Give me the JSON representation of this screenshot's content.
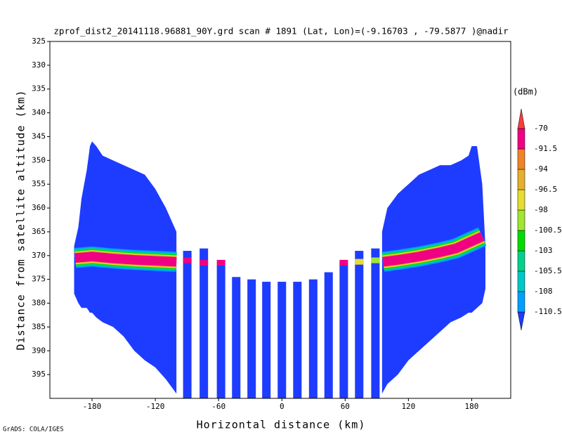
{
  "chart_data": {
    "type": "profile",
    "title": "zprof_dist2_20141118.96881_90Y.grd  scan # 1891  (Lat, Lon)=(-9.16703 , -79.5877 )@nadir",
    "x_label": "Horizontal distance (km)",
    "y_label": "Distance from satellite altitude (km)",
    "footer": "GrADS: COLA/IGES",
    "xlim": [
      -220,
      217
    ],
    "ylim": [
      325,
      400
    ],
    "y_reversed": true,
    "xticks": [
      -180,
      -120,
      -60,
      0,
      60,
      120,
      180
    ],
    "yticks": [
      325,
      330,
      335,
      340,
      345,
      350,
      355,
      360,
      365,
      370,
      375,
      380,
      385,
      390,
      395
    ],
    "colorbar_title": "(dBm)",
    "levels": [
      -110.5,
      -108,
      -105.5,
      -103,
      -100.5,
      -98,
      -96.5,
      -94,
      -91.5,
      -70
    ],
    "colors": [
      "#1e3cff",
      "#00a0ff",
      "#00c8c8",
      "#00d28c",
      "#00dc00",
      "#a0e632",
      "#e6dc32",
      "#e6af2d",
      "#f08228",
      "#f00082",
      "#fa3c3c"
    ],
    "swaths": [
      {
        "value": -112,
        "x": [
          -197,
          -193,
          -190,
          -185,
          -182,
          -180,
          -176,
          -170,
          -160,
          -150,
          -140,
          -130,
          -120,
          -110,
          -100
        ],
        "top": [
          368,
          364,
          358,
          352,
          347,
          346,
          347,
          349,
          350,
          351,
          352,
          353,
          356,
          360,
          365
        ],
        "bottom": [
          378,
          380,
          381,
          381,
          382,
          382,
          383,
          384,
          385,
          387,
          390,
          392,
          393.5,
          396,
          399
        ]
      },
      {
        "value": -112,
        "x": [
          95,
          100,
          110,
          120,
          130,
          140,
          150,
          160,
          170,
          177,
          180,
          185,
          190,
          193
        ],
        "top": [
          365,
          360,
          357,
          355,
          353,
          352,
          351,
          351,
          350,
          349,
          347,
          347,
          355,
          368
        ],
        "bottom": [
          399,
          397,
          395,
          392,
          390,
          388,
          386,
          384,
          383,
          382,
          382,
          381,
          380,
          377
        ]
      }
    ],
    "beams": {
      "value": -112,
      "x": [
        -89.7,
        -74,
        -57.7,
        -43.3,
        -28.7,
        -14.7,
        0,
        14.7,
        29.7,
        44.3,
        58.7,
        73.3,
        88.7
      ],
      "top": [
        369,
        368.5,
        372,
        374.5,
        375,
        375.5,
        375.5,
        375.5,
        375,
        373.5,
        371.5,
        369,
        368.5
      ]
    },
    "caps": {
      "x": [
        -89.7,
        -74,
        -57.7,
        58.7,
        73.3,
        88.7
      ],
      "y": [
        371,
        371.5,
        371.5,
        371.5,
        371.3,
        371
      ],
      "value": [
        -85,
        -85,
        -85,
        -85,
        -97,
        -99
      ]
    },
    "bright_layer": [
      {
        "x": [
          -196,
          -180,
          -160,
          -140,
          -120,
          -100
        ],
        "y": [
          370.5,
          370.2,
          370.6,
          370.9,
          371.1,
          371.3
        ]
      },
      {
        "x": [
          96,
          110,
          130,
          150,
          165,
          180,
          190
        ],
        "y": [
          371.3,
          370.9,
          370.2,
          369.3,
          368.5,
          367,
          366
        ]
      }
    ],
    "layer_shells": [
      {
        "value": -109,
        "thickness": 4.2
      },
      {
        "value": -104,
        "thickness": 3.6
      },
      {
        "value": -101,
        "thickness": 3.1
      },
      {
        "value": -97,
        "thickness": 2.7
      },
      {
        "value": -95,
        "thickness": 2.4
      },
      {
        "value": -85,
        "thickness": 2.0
      }
    ]
  }
}
